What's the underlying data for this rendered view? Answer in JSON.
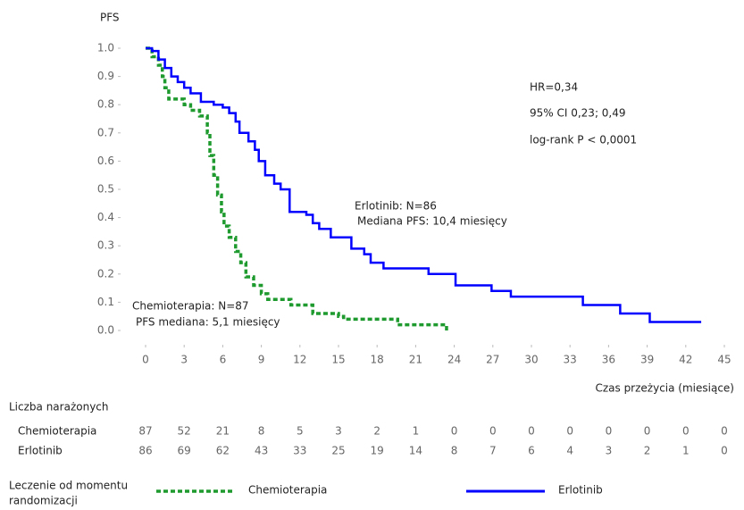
{
  "chart_data": {
    "type": "line",
    "step": true,
    "ylabel": "PFS",
    "xlabel": "Czas przeżycia (miesiące)",
    "xlim": [
      0,
      45
    ],
    "xticks": [
      0,
      3,
      6,
      9,
      12,
      15,
      18,
      21,
      24,
      27,
      30,
      33,
      36,
      39,
      42,
      45
    ],
    "ylim": [
      0,
      1
    ],
    "yticks": [
      {
        "value": 0,
        "label": "0.0"
      },
      0.1,
      0.2,
      0.3,
      0.4,
      0.5,
      0.6,
      0.7,
      0.8,
      0.9,
      {
        "value": 1,
        "label": "1.0"
      }
    ],
    "grid": false,
    "series": [
      {
        "name": "Chemioterapia",
        "color": "#1e9a2e",
        "dash": true,
        "x": [
          0,
          0.5,
          1,
          1.3,
          1.5,
          1.8,
          3,
          3.5,
          4.2,
          4.8,
          5,
          5.3,
          5.6,
          5.9,
          6.1,
          6.5,
          7,
          7.4,
          7.8,
          8.4,
          9,
          9.5,
          11.3,
          13,
          15,
          15.4,
          19.6,
          23.4
        ],
        "values": [
          1.0,
          0.97,
          0.94,
          0.9,
          0.86,
          0.82,
          0.8,
          0.78,
          0.76,
          0.7,
          0.62,
          0.55,
          0.48,
          0.42,
          0.37,
          0.33,
          0.28,
          0.24,
          0.19,
          0.16,
          0.13,
          0.11,
          0.09,
          0.06,
          0.05,
          0.04,
          0.02,
          0.0
        ]
      },
      {
        "name": "Erlotinib",
        "color": "#0000ff",
        "dash": false,
        "x": [
          0,
          0.5,
          1,
          1.5,
          2,
          2.5,
          3,
          3.5,
          4.3,
          5.3,
          6,
          6.5,
          7,
          7.3,
          8,
          8.5,
          8.8,
          9.3,
          10,
          10.5,
          11.2,
          12.5,
          13,
          13.5,
          14.4,
          16,
          17,
          17.5,
          18.5,
          22,
          24.1,
          26.9,
          28.4,
          34,
          36.9,
          39.2,
          43.2
        ],
        "values": [
          1.0,
          0.99,
          0.96,
          0.93,
          0.9,
          0.88,
          0.86,
          0.84,
          0.81,
          0.8,
          0.79,
          0.77,
          0.74,
          0.7,
          0.67,
          0.64,
          0.6,
          0.55,
          0.52,
          0.5,
          0.42,
          0.41,
          0.38,
          0.36,
          0.33,
          0.29,
          0.27,
          0.24,
          0.22,
          0.2,
          0.16,
          0.14,
          0.12,
          0.09,
          0.06,
          0.03,
          0.03
        ]
      }
    ],
    "annotations": [
      "HR=0,34",
      "95% CI 0,23; 0,49",
      "log-rank P < 0,0001",
      "Erlotinib: N=86",
      "Mediana PFS: 10,4 miesięcy",
      "Chemioterapia:  N=87",
      "PFS mediana: 5,1 miesięcy"
    ],
    "risk_table": {
      "title": "Liczba narażonych",
      "rows": [
        {
          "name": "Chemioterapia",
          "values": [
            87,
            52,
            21,
            8,
            5,
            3,
            2,
            1,
            0,
            0,
            0,
            0,
            0,
            0,
            0,
            0
          ]
        },
        {
          "name": "Erlotinib",
          "values": [
            86,
            69,
            62,
            43,
            33,
            25,
            19,
            14,
            8,
            7,
            6,
            4,
            3,
            2,
            1,
            0
          ]
        }
      ]
    },
    "legend_title": [
      "Leczenie od momentu",
      "randomizacji"
    ]
  }
}
